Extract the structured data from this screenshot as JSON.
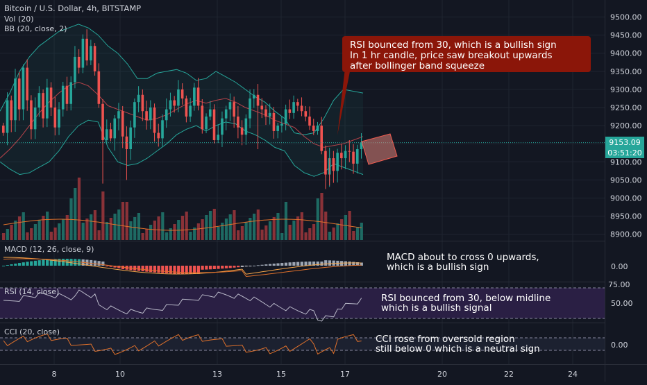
{
  "header": {
    "title": "Bitcoin / U.S. Dollar, 4h, BITSTAMP",
    "vol_label": "Vol (20)",
    "bb_label": "BB (20, close, 2)"
  },
  "panes": {
    "macd_label": "MACD (12, 26, close, 9)",
    "rsi_label": "RSI (14, close)",
    "cci_label": "CCI (20, close)"
  },
  "annotations": {
    "main_callout": [
      "RSI bounced from 30, which is a bullish sign",
      "In 1 hr candle, price saw breakout upwards",
      "after bollinger band squeeze"
    ],
    "macd_note": [
      "MACD about to cross 0 upwards,",
      "which is a bullish sign"
    ],
    "rsi_note": [
      "RSI bounced from 30, below midline",
      "which is a bullish signal"
    ],
    "cci_note": [
      "CCI rose from oversold region",
      "still below 0 which is a neutral sign"
    ]
  },
  "price_axis": {
    "ticks": [
      "9500.00",
      "9450.00",
      "9400.00",
      "9350.00",
      "9300.00",
      "9250.00",
      "9200.00",
      "9150.00",
      "9100.00",
      "9050.00",
      "9000.00",
      "8950.00",
      "8900.00"
    ],
    "last_price": "9153.09",
    "countdown": "03:51:20"
  },
  "macd_axis": {
    "ticks": [
      "0.00"
    ]
  },
  "rsi_axis": {
    "ticks": [
      "75.00",
      "50.00"
    ]
  },
  "cci_axis": {
    "ticks": [
      "0.00"
    ]
  },
  "x_axis": {
    "ticks": [
      "8",
      "10",
      "13",
      "15",
      "17",
      "20",
      "22",
      "24"
    ]
  },
  "colors": {
    "background": "#131722",
    "up": "#26a69a",
    "down": "#ef5350",
    "bb_band": "#26a69a",
    "bb_basis": "#b7434a",
    "rsi_band": "#2a1f44",
    "rsi_line": "#b8b8c8",
    "callout_bg": "#8b1609",
    "macd_line": "#f5a54a",
    "signal_line": "#e0712b",
    "grid": "#1f2430",
    "axis_text": "#d1d4dc"
  },
  "chart_data": {
    "type": "candlestick",
    "symbol": "Bitcoin / U.S. Dollar",
    "interval": "4h",
    "exchange": "BITSTAMP",
    "ylim": [
      8880,
      9525
    ],
    "last_price": 9153.09,
    "x_tick_labels": [
      "8",
      "10",
      "13",
      "15",
      "17",
      "20",
      "22",
      "24"
    ],
    "candles_close": [
      9180,
      9270,
      9215,
      9330,
      9245,
      9360,
      9270,
      9190,
      9250,
      9290,
      9220,
      9305,
      9250,
      9195,
      9245,
      9310,
      9260,
      9320,
      9390,
      9360,
      9440,
      9380,
      9420,
      9350,
      9260,
      9160,
      9190,
      9165,
      9220,
      9240,
      9170,
      9135,
      9195,
      9265,
      9285,
      9240,
      9215,
      9250,
      9180,
      9165,
      9215,
      9245,
      9270,
      9255,
      9300,
      9275,
      9225,
      9255,
      9305,
      9255,
      9190,
      9225,
      9245,
      9160,
      9175,
      9220,
      9245,
      9265,
      9225,
      9195,
      9175,
      9220,
      9275,
      9285,
      9255,
      9245,
      9225,
      9235,
      9185,
      9200,
      9205,
      9245,
      9235,
      9265,
      9255,
      9240,
      9225,
      9200,
      9185,
      9200,
      9130,
      9065,
      9110,
      9075,
      9125,
      9110,
      9130,
      9128,
      9095,
      9135,
      9153
    ],
    "bb_upper_range": [
      9120,
      9480
    ],
    "bb_lower_range": [
      9040,
      9215
    ],
    "volume_peak_series": [
      12,
      9,
      8,
      6,
      14,
      10,
      9,
      16
    ],
    "macd": {
      "zero_line": 0.0,
      "trend": "about to cross 0 upwards"
    },
    "rsi": {
      "upper": 75.0,
      "mid": 50.0,
      "bounce_from": 30
    },
    "cci": {
      "zero_line": 0.0,
      "trend": "rose from oversold region, below 0"
    }
  }
}
